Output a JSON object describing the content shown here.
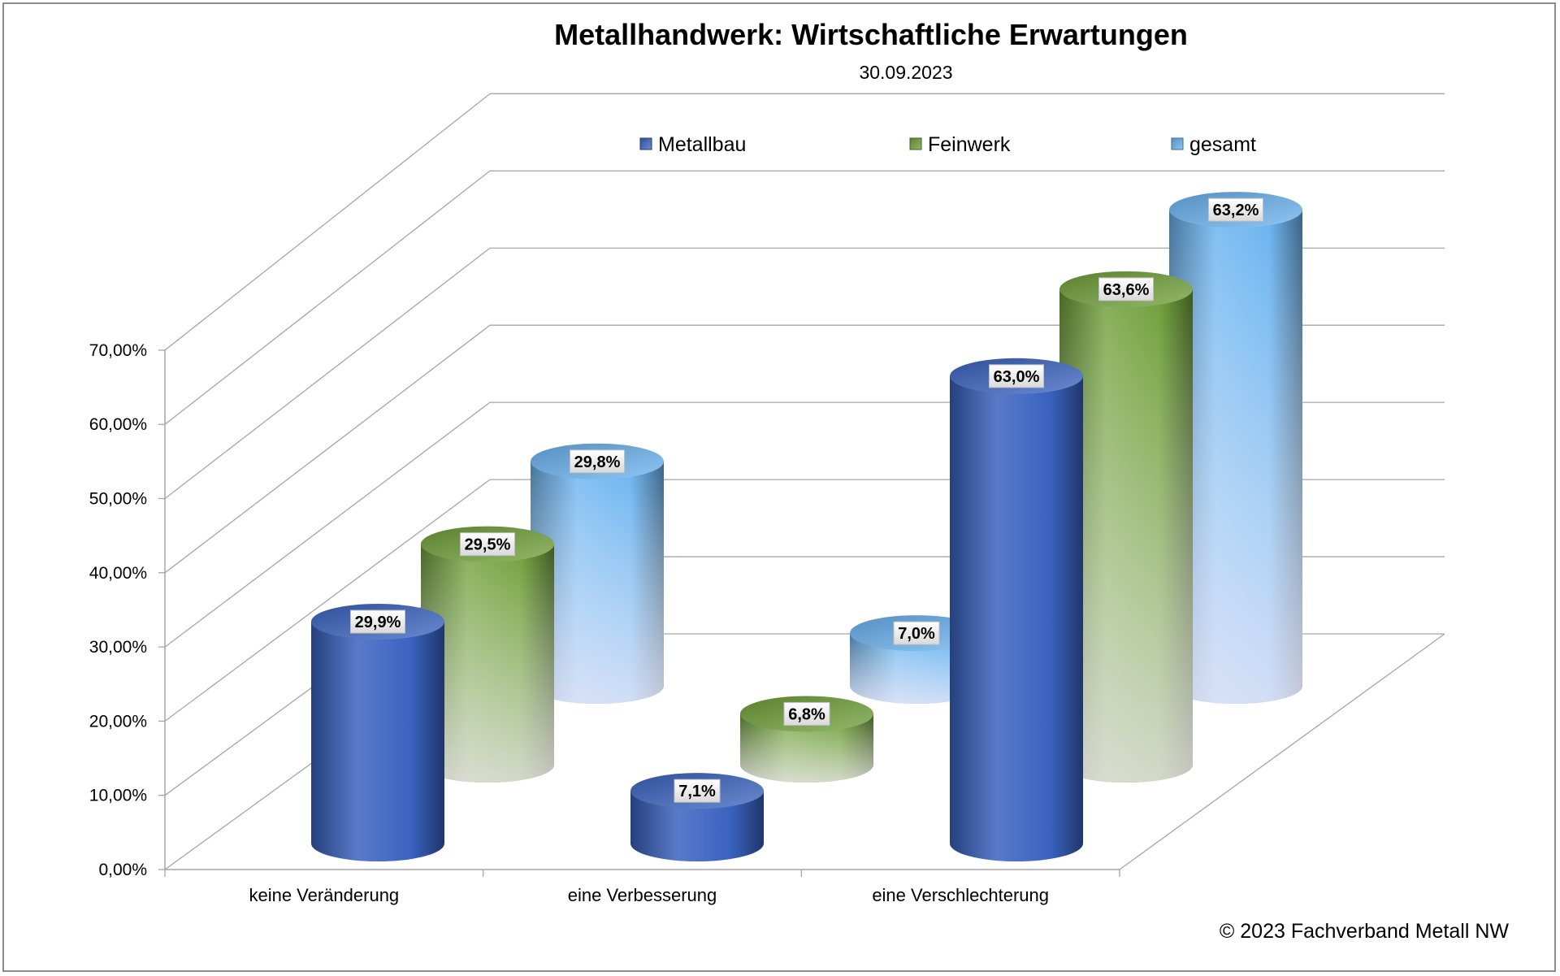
{
  "chart_data": {
    "type": "bar",
    "title": "Metallhandwerk: Wirtschaftliche Erwartungen",
    "subtitle": "30.09.2023",
    "categories": [
      "keine Veränderung",
      "eine Verbesserung",
      "eine Verschlechterung"
    ],
    "series": [
      {
        "name": "Metallbau",
        "values": [
          29.9,
          7.1,
          63.0
        ],
        "labels": [
          "29,9%",
          "7,1%",
          "63,0%"
        ],
        "color": "#3a63c0"
      },
      {
        "name": "Feinwerk",
        "values": [
          29.5,
          6.8,
          63.6
        ],
        "labels": [
          "29,5%",
          "6,8%",
          "63,6%"
        ],
        "color": "#6fa03a"
      },
      {
        "name": "gesamt",
        "values": [
          29.8,
          7.0,
          63.2
        ],
        "labels": [
          "29,8%",
          "7,0%",
          "63,2%"
        ],
        "color": "#6ab3f0"
      }
    ],
    "yticks": [
      "0,00%",
      "10,00%",
      "20,00%",
      "30,00%",
      "40,00%",
      "50,00%",
      "60,00%",
      "70,00%"
    ],
    "ylim": [
      0,
      70
    ],
    "grid": true,
    "legend_position": "top",
    "style": "3d-cylinder"
  },
  "footer": {
    "copyright": "© 2023 Fachverband Metall NW"
  }
}
